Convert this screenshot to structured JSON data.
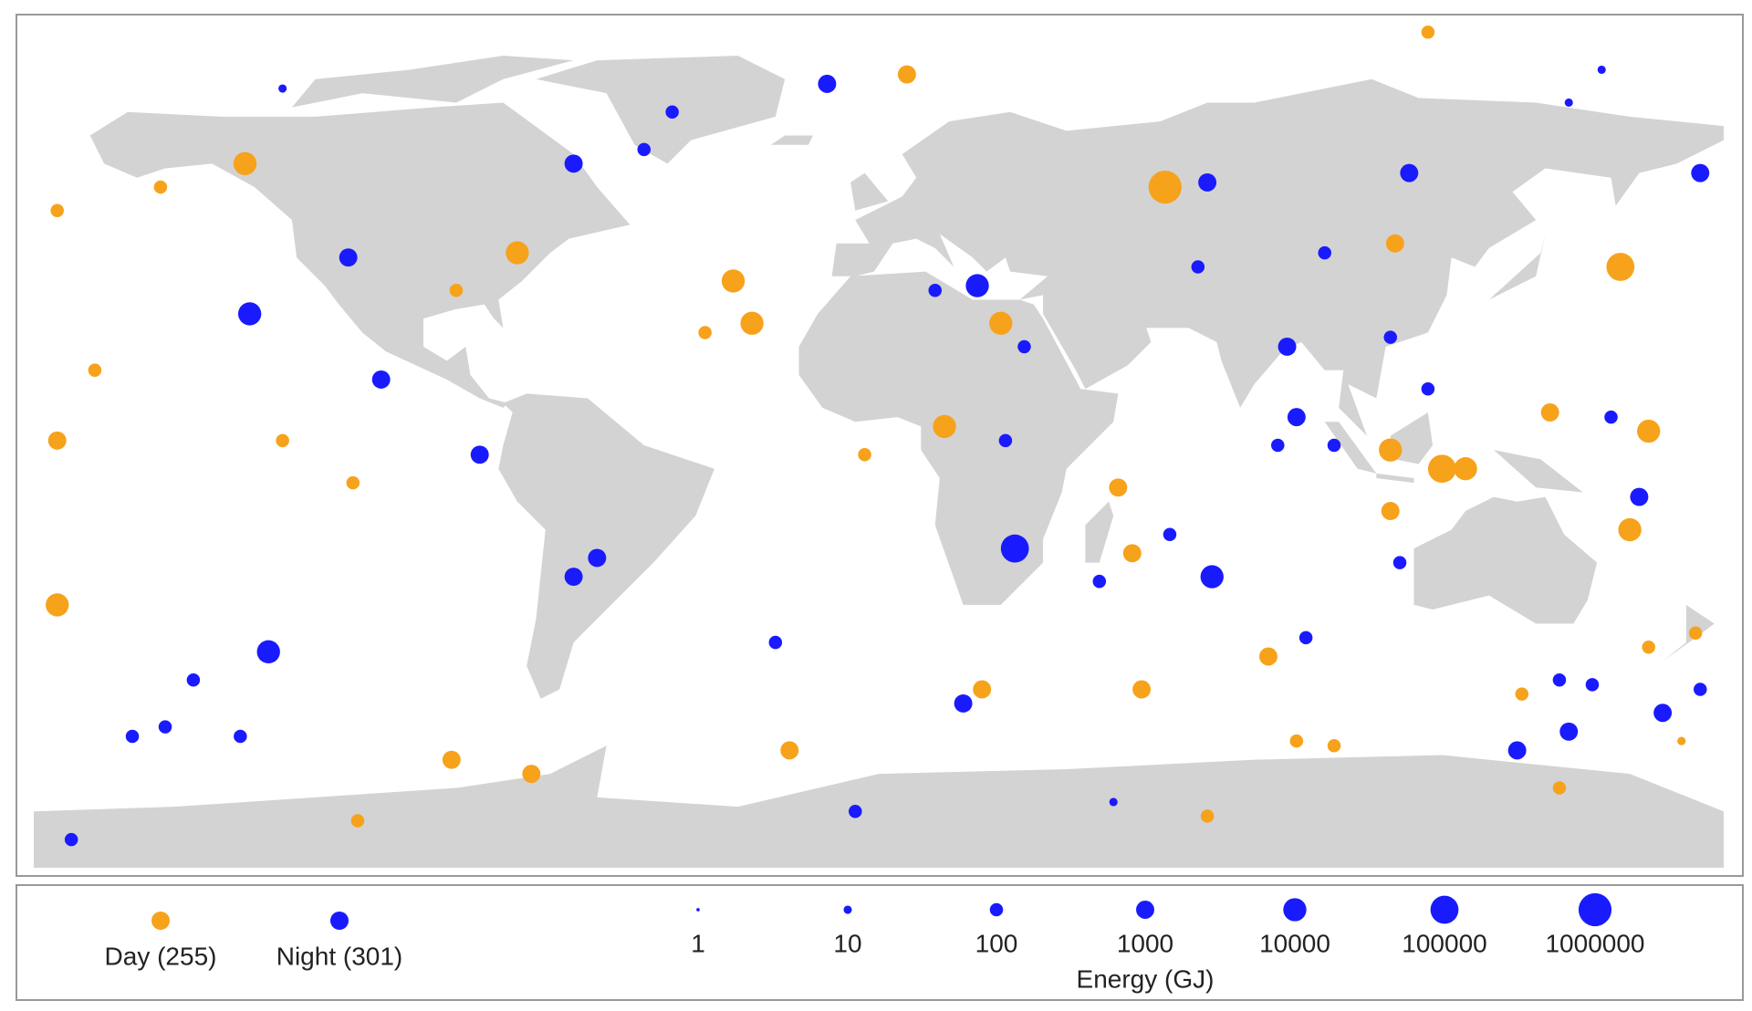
{
  "chart_data": {
    "type": "bubble-map",
    "xlim": [
      -180,
      180
    ],
    "ylim": [
      -90,
      90
    ],
    "series": [
      {
        "name": "Day (255)",
        "color": "#f7a21b",
        "lon": [
          61,
          158,
          120,
          125,
          109,
          -175,
          -135,
          -31,
          -27,
          26,
          14,
          -77,
          6,
          164,
          160,
          109,
          54,
          51,
          56,
          22,
          -91,
          -74,
          -19,
          145,
          143,
          83,
          -112,
          -167,
          -175,
          -153,
          110,
          117,
          70,
          -111,
          164,
          174,
          171,
          89,
          97,
          137,
          -3,
          -37,
          -90,
          -175,
          -127
        ],
        "lat": [
          55,
          38,
          -5,
          -5,
          -1,
          -34,
          60,
          35,
          26,
          26,
          4,
          41,
          79,
          3,
          -18,
          -14,
          -23,
          -9,
          -52,
          -52,
          -67,
          -70,
          -65,
          -73,
          7,
          -45,
          -8,
          16,
          50,
          55,
          43,
          88,
          -79,
          -80,
          -43,
          -40,
          -63,
          -63,
          -64,
          -53,
          -2,
          24,
          33,
          1,
          1
        ],
        "energy": [
          1000000,
          100000,
          100000,
          10000,
          10000,
          10000,
          10000,
          10000,
          10000,
          10000,
          10000,
          10000,
          1000,
          10000,
          10000,
          1000,
          1000,
          1000,
          1000,
          1000,
          1000,
          1000,
          1000,
          100,
          1000,
          1000,
          100,
          100,
          100,
          100,
          1000,
          100,
          100,
          100,
          100,
          100,
          10,
          100,
          100,
          100,
          100,
          100,
          100,
          1000,
          100
        ]
      },
      {
        "name": "Night (301)",
        "color": "#1a1aff",
        "lon": [
          29,
          71,
          21,
          -65,
          -134,
          -130,
          89,
          87,
          113,
          175,
          70,
          -11,
          -106,
          -85,
          -60,
          -65,
          18,
          147,
          167,
          136,
          162,
          156,
          85,
          97,
          31,
          -22,
          91,
          111,
          -172,
          -5,
          -44,
          -50,
          -113,
          -146,
          -159,
          -152,
          -136,
          145,
          152,
          175,
          62,
          47,
          27,
          12,
          68,
          95,
          109,
          117,
          154,
          147,
          50,
          -127
        ],
        "lat": [
          -22,
          -28,
          34,
          60,
          28,
          -44,
          6,
          21,
          58,
          58,
          56,
          77,
          14,
          -2,
          -24,
          -28,
          -55,
          -61,
          -57,
          -65,
          -11,
          6,
          0,
          0,
          21,
          -42,
          -41,
          -25,
          -84,
          -78,
          71,
          63,
          40,
          -50,
          -62,
          -60,
          -62,
          -50,
          -51,
          -52,
          -19,
          -29,
          1,
          33,
          38,
          41,
          23,
          12,
          80,
          73,
          -76,
          76
        ],
        "energy": [
          100000,
          10000,
          10000,
          1000,
          10000,
          10000,
          1000,
          1000,
          1000,
          1000,
          1000,
          1000,
          1000,
          1000,
          1000,
          1000,
          1000,
          1000,
          1000,
          1000,
          1000,
          100,
          100,
          100,
          100,
          100,
          100,
          100,
          100,
          100,
          100,
          100,
          1000,
          100,
          100,
          100,
          100,
          100,
          100,
          100,
          100,
          100,
          100,
          100,
          100,
          100,
          100,
          100,
          10,
          10,
          10,
          10
        ]
      }
    ],
    "size_legend": {
      "title": "Energy (GJ)",
      "color": "#1a1aff",
      "values": [
        1,
        10,
        100,
        1000,
        10000,
        100000,
        1000000
      ]
    }
  }
}
